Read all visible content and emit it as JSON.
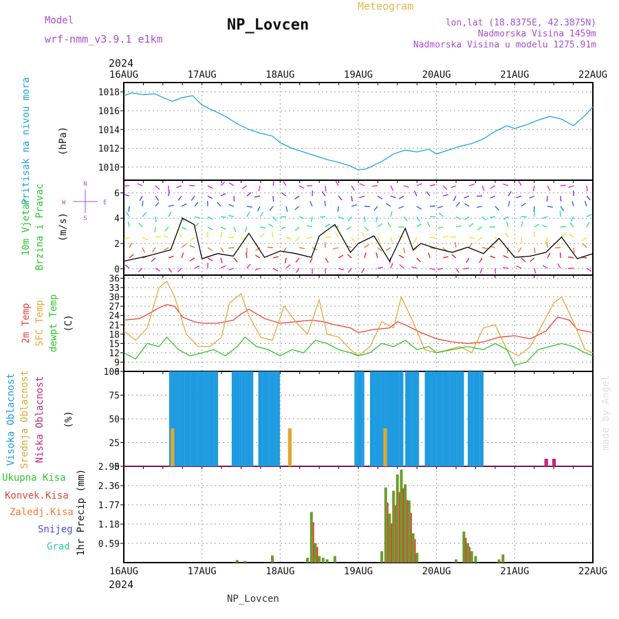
{
  "header": {
    "model_label": "Model",
    "model_name": "wrf-nmm_v3.9.1  e1km",
    "title": "NP_Lovcen",
    "product": "Meteogram",
    "location": "lon,lat (18.8375E, 42.3875N)",
    "elevation": "Nadmorska Visina 1459m",
    "model_elevation": "Nadmorska Visina u modelu 1275.91m",
    "year_top": "2024",
    "year_bottom": "2024",
    "footer_station": "NP_Lovcen",
    "credit": "made by Angel"
  },
  "colors": {
    "pressure": "#1fa4e0",
    "temp2m": "#e8413a",
    "sfc": "#e8a834",
    "dewpt": "#2ec42e",
    "high_cloud": "#1e9be0",
    "mid_cloud": "#e0a832",
    "low_cloud": "#c7247c",
    "precip_total": "#6b9c2e",
    "precip_conv": "#e0403a",
    "snow": "#4a4adc",
    "purple_text": "#a64fd0",
    "gold_text": "#e0b84a"
  },
  "chart_data": [
    {
      "type": "line",
      "name": "pressure",
      "ylabel_main": "Pritisak na nivou mora",
      "ylabel_unit": "(hPa)",
      "x_ticks": [
        "16AUG",
        "17AUG",
        "18AUG",
        "19AUG",
        "20AUG",
        "21AUG",
        "22AUG"
      ],
      "ylim": [
        1008.6,
        1019
      ],
      "yticks": [
        1010,
        1012,
        1014,
        1016,
        1018
      ],
      "series": [
        {
          "x": [
            0,
            0.1,
            0.25,
            0.4,
            0.5,
            0.62,
            0.75,
            0.88,
            1.0,
            1.15,
            1.3,
            1.45,
            1.6,
            1.75,
            1.9,
            2.0,
            2.15,
            2.3,
            2.45,
            2.6,
            2.75,
            2.9,
            3.0,
            3.1,
            3.2,
            3.3,
            3.45,
            3.6,
            3.75,
            3.9,
            4.0,
            4.15,
            4.3,
            4.45,
            4.6,
            4.75,
            4.9,
            5.0,
            5.15,
            5.3,
            5.45,
            5.6,
            5.75,
            5.9,
            6.0
          ],
          "values": [
            1017.6,
            1017.9,
            1017.7,
            1017.8,
            1017.4,
            1017.0,
            1017.4,
            1017.6,
            1016.6,
            1016.0,
            1015.4,
            1014.6,
            1014.0,
            1013.6,
            1013.3,
            1012.6,
            1012.0,
            1011.6,
            1011.2,
            1010.8,
            1010.5,
            1010.1,
            1009.7,
            1009.8,
            1010.2,
            1010.6,
            1011.4,
            1011.8,
            1011.6,
            1011.9,
            1011.4,
            1011.8,
            1012.2,
            1012.5,
            1013.0,
            1013.8,
            1014.4,
            1014.1,
            1014.5,
            1015.0,
            1015.4,
            1015.1,
            1014.4,
            1015.5,
            1016.4
          ]
        }
      ]
    },
    {
      "type": "line",
      "name": "wind",
      "ylabel_main": "10m Vjetar",
      "ylabel_sub": "Brzina i Pravac",
      "ylabel_unit": "(m/s)",
      "compass": [
        "N",
        "W",
        "E",
        "S"
      ],
      "ylim": [
        -0.5,
        7
      ],
      "yticks": [
        0,
        2,
        4,
        6
      ],
      "series": [
        {
          "x": [
            0,
            0.3,
            0.6,
            0.75,
            0.9,
            1.0,
            1.2,
            1.4,
            1.6,
            1.8,
            2.0,
            2.2,
            2.4,
            2.5,
            2.7,
            2.9,
            3.0,
            3.2,
            3.4,
            3.6,
            3.7,
            3.8,
            4.0,
            4.2,
            4.4,
            4.6,
            4.8,
            5.0,
            5.2,
            5.4,
            5.6,
            5.8,
            6.0
          ],
          "values": [
            0.6,
            1.0,
            1.5,
            4.0,
            3.5,
            0.8,
            1.2,
            1.0,
            2.8,
            0.9,
            1.4,
            1.2,
            0.9,
            2.6,
            3.5,
            1.3,
            2.0,
            2.6,
            0.6,
            3.2,
            1.5,
            2.0,
            1.6,
            1.3,
            1.7,
            1.2,
            2.4,
            0.9,
            1.0,
            1.3,
            2.5,
            0.8,
            1.2
          ]
        }
      ]
    },
    {
      "type": "line",
      "name": "temperature",
      "ylabel_a": "2m Temp",
      "ylabel_b": "SFC Temp",
      "ylabel_c": "dewpt Temp",
      "ylabel_unit": "(C)",
      "ylim": [
        6,
        37
      ],
      "yticks": [
        6,
        9,
        12,
        15,
        18,
        21,
        24,
        27,
        30,
        33,
        36
      ],
      "series": [
        {
          "name": "2m Temp",
          "x": [
            0,
            0.2,
            0.35,
            0.45,
            0.55,
            0.65,
            0.75,
            0.9,
            1.0,
            1.2,
            1.4,
            1.5,
            1.6,
            1.8,
            2.0,
            2.2,
            2.4,
            2.55,
            2.7,
            2.9,
            3.0,
            3.2,
            3.4,
            3.5,
            3.6,
            3.8,
            4.0,
            4.2,
            4.4,
            4.6,
            4.8,
            5.0,
            5.2,
            5.4,
            5.55,
            5.7,
            5.8,
            6.0
          ],
          "values": [
            22.5,
            23.0,
            25.0,
            26.5,
            27.5,
            27.0,
            23.5,
            22.0,
            21.5,
            21.5,
            22.5,
            24.5,
            26.0,
            23.0,
            21.5,
            22.0,
            22.5,
            22.0,
            21.0,
            20.0,
            18.5,
            19.5,
            20.0,
            22.0,
            21.0,
            18.5,
            16.5,
            15.5,
            15.0,
            15.5,
            17.0,
            17.5,
            16.5,
            19.0,
            23.5,
            22.5,
            19.5,
            18.5
          ]
        },
        {
          "name": "SFC Temp",
          "x": [
            0,
            0.15,
            0.3,
            0.45,
            0.55,
            0.65,
            0.8,
            0.95,
            1.1,
            1.25,
            1.35,
            1.5,
            1.6,
            1.75,
            1.9,
            2.05,
            2.2,
            2.35,
            2.5,
            2.6,
            2.75,
            2.9,
            3.0,
            3.15,
            3.3,
            3.45,
            3.55,
            3.7,
            3.85,
            4.0,
            4.15,
            4.3,
            4.45,
            4.6,
            4.75,
            4.9,
            5.05,
            5.2,
            5.35,
            5.5,
            5.6,
            5.75,
            5.9,
            6.0
          ],
          "values": [
            19,
            16,
            20,
            33,
            35,
            30,
            18,
            14,
            14,
            17,
            28,
            31,
            24,
            17,
            16,
            27,
            22,
            18,
            29,
            18,
            17,
            13,
            11,
            14,
            22,
            20,
            30,
            22,
            13,
            12,
            13,
            14,
            12,
            20,
            21,
            13,
            11,
            14,
            21,
            28,
            30,
            22,
            13,
            12
          ]
        },
        {
          "name": "dewpt Temp",
          "x": [
            0,
            0.15,
            0.3,
            0.45,
            0.55,
            0.7,
            0.85,
            1.0,
            1.15,
            1.3,
            1.45,
            1.55,
            1.7,
            1.85,
            2.0,
            2.15,
            2.3,
            2.45,
            2.6,
            2.75,
            2.9,
            3.0,
            3.15,
            3.3,
            3.45,
            3.6,
            3.75,
            3.9,
            4.0,
            4.2,
            4.4,
            4.6,
            4.75,
            4.9,
            5.0,
            5.15,
            5.3,
            5.45,
            5.6,
            5.75,
            5.9,
            6.0
          ],
          "values": [
            12,
            10,
            15,
            14,
            17,
            13,
            11,
            12,
            13,
            11,
            14,
            17,
            14,
            13,
            11,
            13,
            12,
            16,
            15,
            13,
            12,
            11,
            12,
            15,
            14,
            16,
            13,
            14,
            12,
            13,
            14,
            13,
            15,
            13,
            8,
            9,
            13,
            14,
            15,
            14,
            12,
            11
          ]
        }
      ]
    },
    {
      "type": "bar",
      "name": "clouds",
      "ylabel_a": "Visoka Oblacnost",
      "ylabel_b": "Srednja Oblacnost",
      "ylabel_c": "Niska Oblacnost",
      "ylabel_unit": "(%)",
      "ylim": [
        0,
        100
      ],
      "yticks": [
        0,
        25,
        50,
        75,
        100
      ],
      "high_ranges": [
        [
          0.58,
          1.2
        ],
        [
          1.38,
          1.65
        ],
        [
          1.72,
          1.97
        ],
        [
          2.95,
          3.05
        ],
        [
          3.15,
          3.55
        ],
        [
          3.6,
          3.75
        ],
        [
          3.85,
          4.35
        ],
        [
          4.4,
          4.6
        ]
      ],
      "mid_ranges": [
        [
          0.6,
          0.62
        ],
        [
          2.1,
          2.12
        ],
        [
          3.32,
          3.34
        ]
      ],
      "low_ranges": [
        [
          5.38,
          5.4
        ],
        [
          5.48,
          5.5
        ]
      ]
    },
    {
      "type": "bar",
      "name": "precip",
      "ylabel_main": "1hr Precip (mm)",
      "legend": [
        "Ukupna Kisa",
        "Konvek.Kisa",
        "Zaledj.Kisa",
        "Snijeg",
        "Grad"
      ],
      "ylim": [
        0,
        2.95
      ],
      "yticks": [
        0.59,
        1.18,
        1.77,
        2.36,
        2.95
      ],
      "ytick_labels": [
        "0.59",
        "1.18",
        "1.77",
        "2.36",
        "2.95"
      ],
      "x": [
        1.45,
        1.55,
        1.9,
        2.35,
        2.4,
        2.45,
        2.5,
        2.55,
        2.6,
        2.7,
        3.3,
        3.35,
        3.4,
        3.45,
        3.5,
        3.55,
        3.6,
        3.65,
        3.7,
        3.75,
        4.25,
        4.35,
        4.4,
        4.45,
        4.5,
        4.8,
        4.85
      ],
      "values": [
        0.08,
        0.05,
        0.22,
        0.15,
        1.55,
        0.6,
        0.2,
        0.15,
        0.1,
        0.2,
        0.35,
        2.3,
        1.5,
        2.2,
        2.7,
        2.85,
        2.4,
        1.9,
        0.9,
        0.3,
        0.1,
        0.95,
        0.6,
        0.35,
        0.2,
        0.1,
        0.25
      ]
    }
  ]
}
